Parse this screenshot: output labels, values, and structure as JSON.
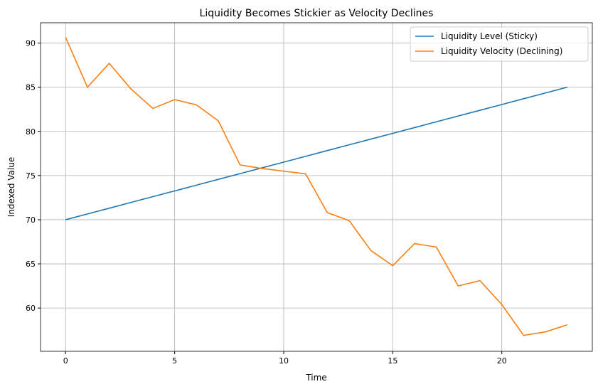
{
  "chart_data": {
    "type": "line",
    "title": "Liquidity Becomes Stickier as Velocity Declines",
    "xlabel": "Time",
    "ylabel": "Indexed Value",
    "xlim": [
      -1.15,
      24.15
    ],
    "ylim": [
      55.1,
      92.3
    ],
    "xticks": [
      0,
      5,
      10,
      15,
      20
    ],
    "yticks": [
      60,
      65,
      70,
      75,
      80,
      85,
      90
    ],
    "grid": true,
    "legend_position": "top-right",
    "x": [
      0,
      1,
      2,
      3,
      4,
      5,
      6,
      7,
      8,
      9,
      10,
      11,
      12,
      13,
      14,
      15,
      16,
      17,
      18,
      19,
      20,
      21,
      22,
      23
    ],
    "series": [
      {
        "name": "Liquidity Level (Sticky)",
        "color": "#1f77b4",
        "values": [
          70.0,
          70.65,
          71.3,
          71.96,
          72.61,
          73.26,
          73.91,
          74.57,
          75.22,
          75.87,
          76.52,
          77.17,
          77.83,
          78.48,
          79.13,
          79.78,
          80.43,
          81.09,
          81.74,
          82.39,
          83.04,
          83.7,
          84.35,
          85.0
        ]
      },
      {
        "name": "Liquidity Velocity (Declining)",
        "color": "#ff7f0e",
        "values": [
          90.65,
          85.0,
          87.7,
          84.8,
          82.6,
          83.6,
          83.0,
          81.2,
          76.2,
          75.8,
          75.5,
          75.2,
          70.8,
          69.9,
          66.5,
          64.8,
          67.3,
          66.9,
          62.5,
          63.1,
          60.4,
          56.9,
          57.3,
          58.1
        ]
      }
    ]
  }
}
